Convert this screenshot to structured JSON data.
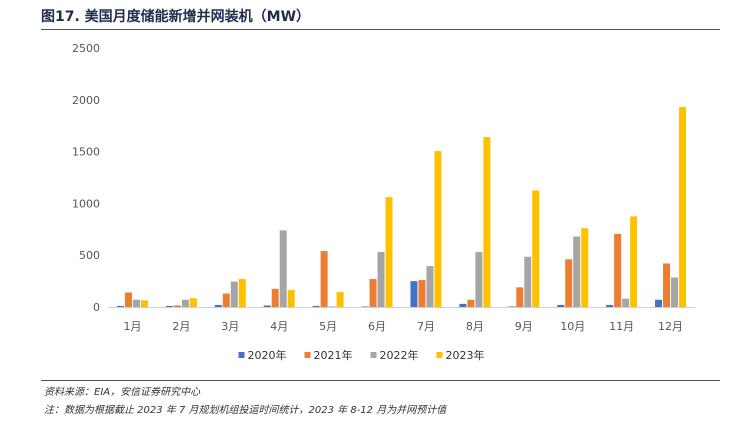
{
  "figure": {
    "title": "图17. 美国月度储能新增并网装机（MW）",
    "source": "资料来源：EIA，安信证券研究中心",
    "note": "注：数据为根据截止 2023 年 7 月规划机组投运时间统计，2023 年 8-12 月为并网预计值"
  },
  "chart_data": {
    "type": "bar",
    "title": "",
    "xlabel": "",
    "ylabel": "",
    "ylim": [
      0,
      2500
    ],
    "yticks": [
      0,
      500,
      1000,
      1500,
      2000,
      2500
    ],
    "grid": false,
    "legend_position": "bottom",
    "categories": [
      "1月",
      "2月",
      "3月",
      "4月",
      "5月",
      "6月",
      "7月",
      "8月",
      "9月",
      "10月",
      "11月",
      "12月"
    ],
    "series": [
      {
        "name": "2020年",
        "color": "#4472c4",
        "values": [
          10,
          10,
          20,
          15,
          10,
          5,
          250,
          30,
          5,
          20,
          20,
          70
        ]
      },
      {
        "name": "2021年",
        "color": "#ed7d31",
        "values": [
          140,
          15,
          130,
          175,
          540,
          270,
          260,
          70,
          190,
          460,
          705,
          420
        ]
      },
      {
        "name": "2022年",
        "color": "#a5a5a5",
        "values": [
          70,
          70,
          245,
          740,
          5,
          530,
          395,
          530,
          485,
          680,
          80,
          285
        ]
      },
      {
        "name": "2023年",
        "color": "#ffc000",
        "values": [
          65,
          85,
          270,
          165,
          145,
          1060,
          1505,
          1640,
          1125,
          760,
          875,
          1930
        ]
      }
    ]
  }
}
